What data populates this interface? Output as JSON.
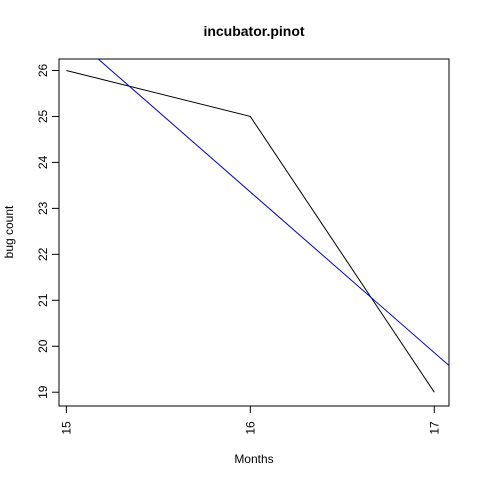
{
  "chart_data": {
    "type": "line",
    "title": "incubator.pinot",
    "xlabel": "Months",
    "ylabel": "bug count",
    "xlim": [
      14.96,
      17.08
    ],
    "ylim": [
      18.7,
      26.25
    ],
    "xticks": [
      15,
      16,
      17
    ],
    "yticks": [
      19,
      20,
      21,
      22,
      23,
      24,
      25,
      26
    ],
    "grid": false,
    "series": [
      {
        "color": "#000000",
        "x": [
          15,
          16,
          17
        ],
        "y": [
          26,
          25,
          19
        ]
      },
      {
        "color": "#0000cc",
        "x": [
          15.15,
          17.08
        ],
        "y": [
          26.33,
          19.58
        ]
      }
    ]
  }
}
